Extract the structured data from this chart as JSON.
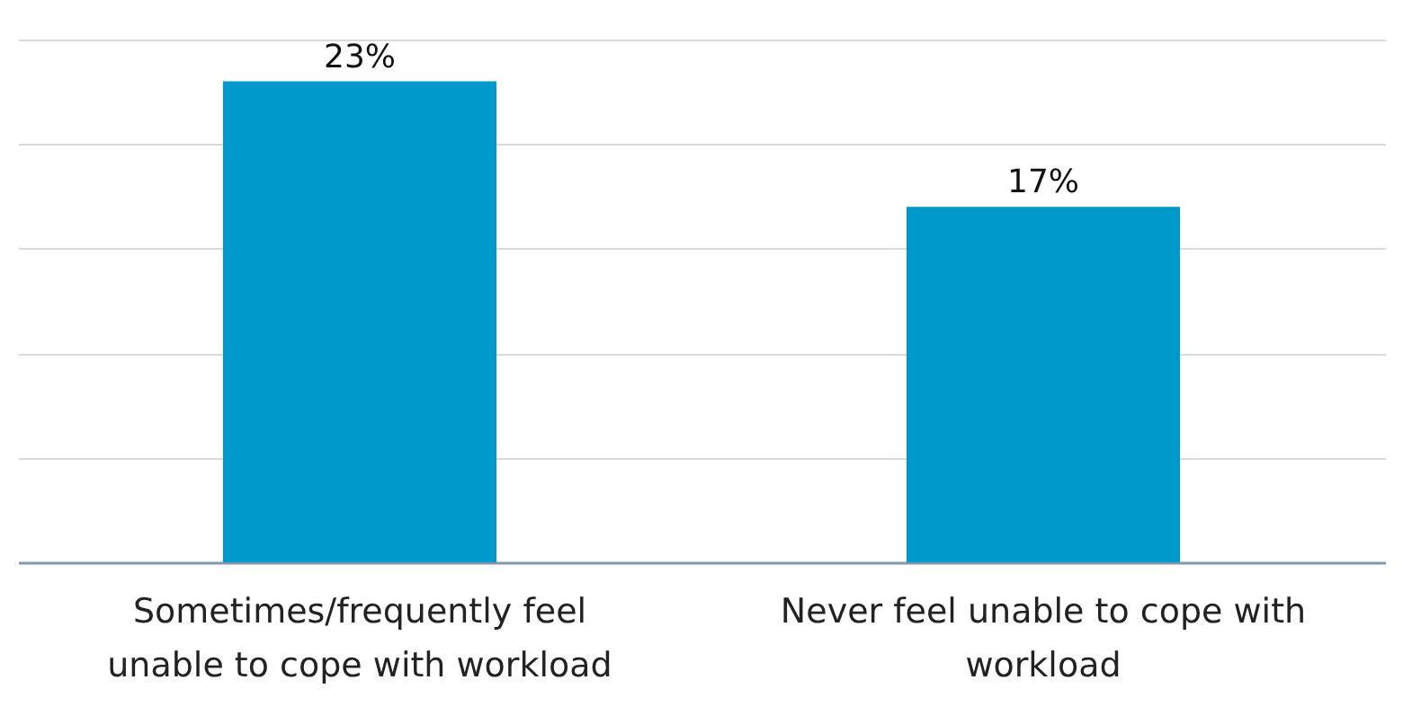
{
  "chart_data": {
    "type": "bar",
    "categories": [
      "Sometimes/frequently feel unable to cope with workload",
      "Never feel unable to cope with workload"
    ],
    "values": [
      23,
      17
    ],
    "value_labels": [
      "23%",
      "17%"
    ],
    "color": "#0099cc",
    "ylim": [
      0,
      25
    ],
    "yticks": [
      {
        "value": 0,
        "label": null
      },
      {
        "value": 5,
        "label": null
      },
      {
        "value": 10,
        "label": null
      },
      {
        "value": 15,
        "label": null
      },
      {
        "value": 20,
        "label": null
      },
      {
        "value": 25,
        "label": null
      }
    ],
    "grid": "y",
    "tick_labels": "x"
  }
}
